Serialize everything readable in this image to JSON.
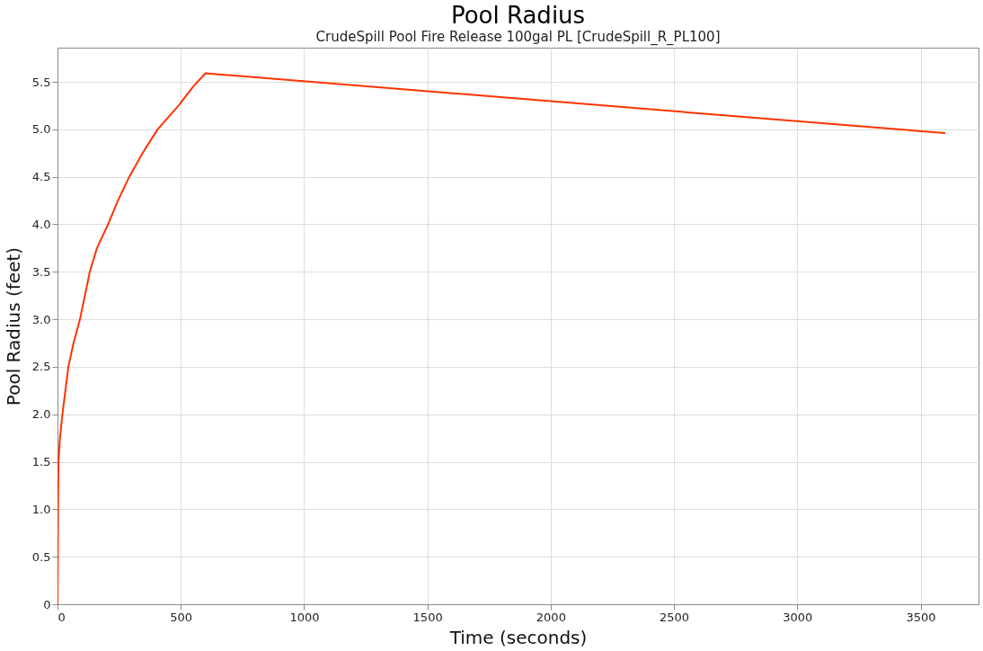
{
  "chart_data": {
    "type": "line",
    "title": "Pool Radius",
    "subtitle": "CrudeSpill Pool Fire Release 100gal PL [CrudeSpill_R_PL100]",
    "xlabel": "Time (seconds)",
    "ylabel": "Pool Radius (feet)",
    "x": [
      0,
      1,
      2,
      4,
      10,
      20,
      44,
      65,
      91,
      131,
      160,
      205,
      245,
      291,
      345,
      406,
      491,
      550,
      600,
      3600
    ],
    "series": [
      {
        "color": "#ff3300",
        "values": [
          0,
          0.5,
          1.0,
          1.5,
          1.75,
          2.0,
          2.5,
          2.75,
          3.0,
          3.5,
          3.75,
          4.0,
          4.25,
          4.5,
          4.75,
          5.0,
          5.25,
          5.45,
          5.59,
          4.96
        ]
      }
    ],
    "xlim": [
      0,
      3735
    ],
    "xticks": [
      0,
      500,
      1000,
      1500,
      2000,
      2500,
      3000,
      3500
    ],
    "ylim": [
      0,
      5.86
    ],
    "yticks": [
      0,
      {
        "value": 0.5,
        "label": "0.5"
      },
      {
        "value": 1,
        "label": "1.0"
      },
      {
        "value": 1.5,
        "label": "1.5"
      },
      {
        "value": 2,
        "label": "2.0"
      },
      {
        "value": 2.5,
        "label": "2.5"
      },
      {
        "value": 3,
        "label": "3.0"
      },
      {
        "value": 3.5,
        "label": "3.5"
      },
      {
        "value": 4,
        "label": "4.0"
      },
      {
        "value": 4.5,
        "label": "4.5"
      },
      {
        "value": 5,
        "label": "5.0"
      },
      {
        "value": 5.5,
        "label": "5.5"
      }
    ],
    "grid": true,
    "line_style": "solid"
  }
}
